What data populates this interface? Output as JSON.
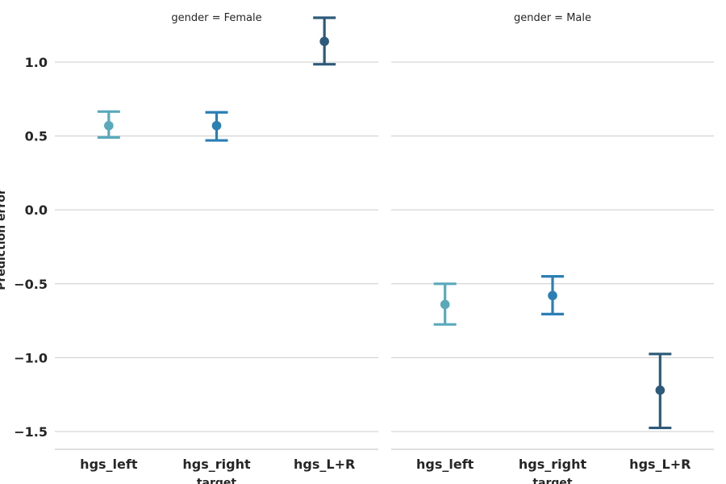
{
  "chart_data": {
    "type": "pointplot",
    "ylabel": "Prediction error",
    "xlabel": "target",
    "categories": [
      "hgs_left",
      "hgs_right",
      "hgs_L+R"
    ],
    "category_colors": [
      "#5aa9bb",
      "#2a7fb5",
      "#2d5a79"
    ],
    "yticks": [
      1.0,
      0.5,
      0.0,
      -0.5,
      -1.0,
      -1.5
    ],
    "ytick_labels": [
      "1.0",
      "0.5",
      "0.0",
      "−0.5",
      "−1.0",
      "−1.5"
    ],
    "ylim": [
      -1.62,
      1.42
    ],
    "grid": "horizontal",
    "facets": [
      {
        "title": "gender = Female",
        "points": [
          {
            "category": "hgs_left",
            "y": 0.57,
            "ci_low": 0.49,
            "ci_high": 0.665
          },
          {
            "category": "hgs_right",
            "y": 0.57,
            "ci_low": 0.47,
            "ci_high": 0.66
          },
          {
            "category": "hgs_L+R",
            "y": 1.14,
            "ci_low": 0.985,
            "ci_high": 1.3
          }
        ]
      },
      {
        "title": "gender = Male",
        "points": [
          {
            "category": "hgs_left",
            "y": -0.64,
            "ci_low": -0.775,
            "ci_high": -0.5
          },
          {
            "category": "hgs_right",
            "y": -0.58,
            "ci_low": -0.705,
            "ci_high": -0.45
          },
          {
            "category": "hgs_L+R",
            "y": -1.22,
            "ci_low": -1.475,
            "ci_high": -0.975
          }
        ]
      }
    ]
  }
}
